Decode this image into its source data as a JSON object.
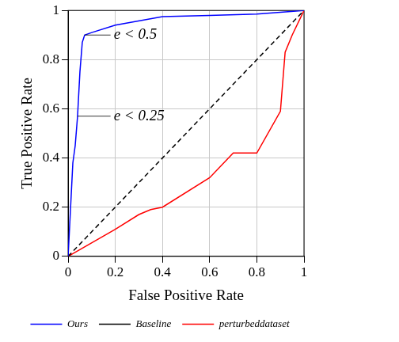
{
  "chart_data": {
    "type": "line",
    "x_label": "False Positive Rate",
    "y_label": "True Positive Rate",
    "xlim": [
      0,
      1
    ],
    "xticks": [
      0,
      0.2,
      0.4,
      0.6,
      0.8,
      1
    ],
    "ylim": [
      0,
      1
    ],
    "yticks": [
      0,
      0.2,
      0.4,
      0.6,
      0.8,
      1
    ],
    "grid": true,
    "legend": "bottom",
    "series": [
      {
        "name": "Ours",
        "color": "#0000ff",
        "line_style": "solid",
        "x": [
          0,
          0.02,
          0.03,
          0.04,
          0.05,
          0.06,
          0.07,
          0.1,
          0.2,
          0.4,
          0.6,
          0.8,
          1
        ],
        "values": [
          0,
          0.38,
          0.45,
          0.57,
          0.75,
          0.87,
          0.9,
          0.91,
          0.94,
          0.975,
          0.98,
          0.985,
          1
        ]
      },
      {
        "name": "Baseline",
        "color": "#000000",
        "line_style": "dashed",
        "x": [
          0,
          1
        ],
        "values": [
          0,
          1
        ]
      },
      {
        "name": "perturbeddataset",
        "color": "#ff0000",
        "line_style": "solid",
        "x": [
          0,
          0.2,
          0.3,
          0.35,
          0.4,
          0.6,
          0.7,
          0.8,
          0.9,
          0.92,
          0.95,
          1
        ],
        "values": [
          0,
          0.11,
          0.17,
          0.19,
          0.2,
          0.32,
          0.42,
          0.42,
          0.59,
          0.83,
          0.9,
          1
        ]
      }
    ],
    "annotations": [
      {
        "text": "e < 0.5",
        "x": 0.07,
        "y": 0.9
      },
      {
        "text": "e < 0.25",
        "x": 0.04,
        "y": 0.57
      }
    ]
  }
}
